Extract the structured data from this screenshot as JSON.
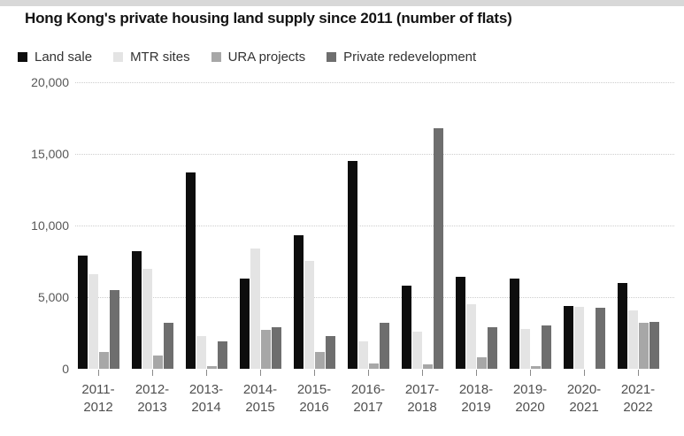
{
  "page": {
    "top_strip_color": "#d8d8d8",
    "background_color": "#ffffff"
  },
  "title": "Hong Kong's private housing land supply since 2011 (number of flats)",
  "legend": [
    {
      "label": "Land sale",
      "color": "#0d0d0d"
    },
    {
      "label": "MTR sites",
      "color": "#e4e4e4"
    },
    {
      "label": "URA projects",
      "color": "#a7a7a7"
    },
    {
      "label": "Private redevelopment",
      "color": "#6e6e6e"
    }
  ],
  "chart_data": {
    "type": "bar",
    "title": "Hong Kong's private housing land supply since 2011 (number of flats)",
    "categories": [
      "2011-2012",
      "2012-2013",
      "2013-2014",
      "2014-2015",
      "2015-2016",
      "2016-2017",
      "2017-2018",
      "2018-2019",
      "2019-2020",
      "2020-2021",
      "2021-2022"
    ],
    "series": [
      {
        "name": "Land sale",
        "color": "#0d0d0d",
        "values": [
          7900,
          8200,
          13700,
          6300,
          9300,
          14500,
          5800,
          6400,
          6300,
          4400,
          6000
        ]
      },
      {
        "name": "MTR sites",
        "color": "#e4e4e4",
        "values": [
          6600,
          7000,
          2300,
          8400,
          7500,
          1900,
          2600,
          4500,
          2800,
          4300,
          4100
        ]
      },
      {
        "name": "URA projects",
        "color": "#a7a7a7",
        "values": [
          1200,
          900,
          200,
          2700,
          1200,
          400,
          300,
          800,
          200,
          0,
          3200
        ]
      },
      {
        "name": "Private redevelopment",
        "color": "#6e6e6e",
        "values": [
          5500,
          3200,
          1900,
          2900,
          2300,
          3200,
          16800,
          2900,
          3000,
          4250,
          3300
        ]
      }
    ],
    "xlabel": "",
    "ylabel": "",
    "ylim": [
      0,
      20000
    ],
    "yticks": [
      0,
      5000,
      10000,
      15000,
      20000
    ],
    "ytick_labels": [
      "0",
      "5,000",
      "10,000",
      "15,000",
      "20,000"
    ],
    "grid": "horizontal-dotted",
    "gridline_color": "#cdcdcd",
    "legend_position": "top"
  }
}
